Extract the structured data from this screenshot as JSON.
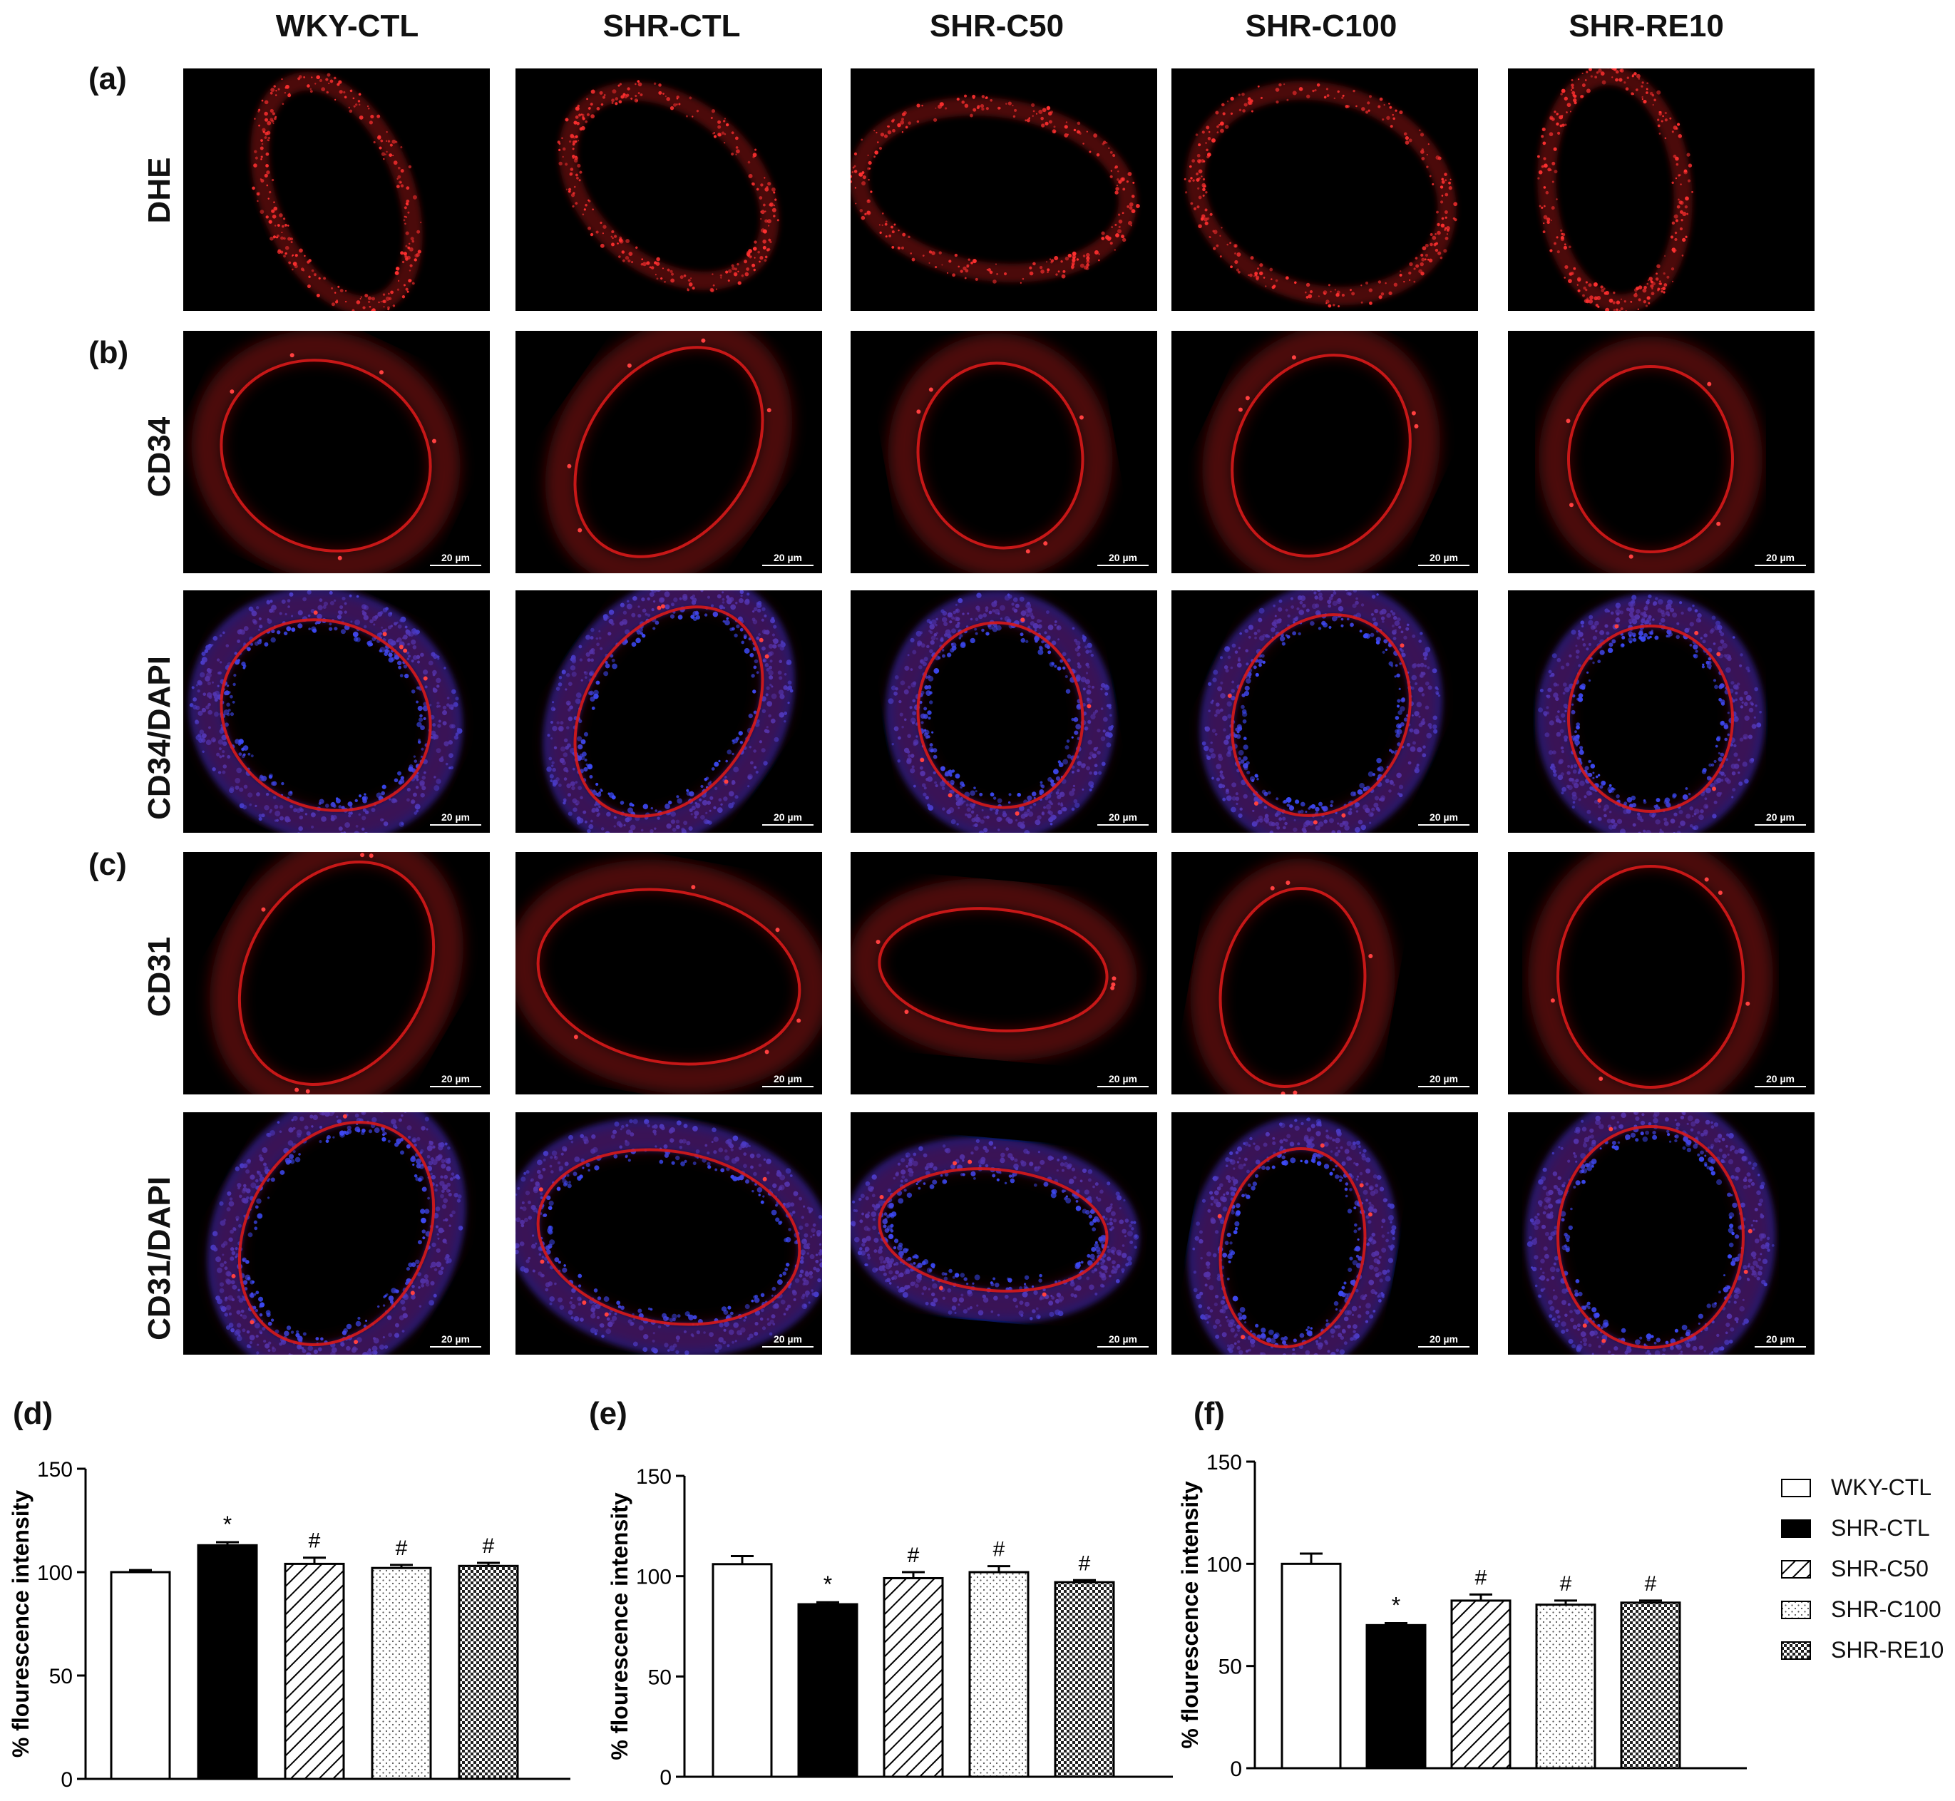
{
  "groups": [
    "WKY-CTL",
    "SHR-CTL",
    "SHR-C50",
    "SHR-C100",
    "SHR-RE10"
  ],
  "panel_letters": [
    "(a)",
    "(b)",
    "(c)",
    "(d)",
    "(e)",
    "(f)"
  ],
  "row_labels": [
    "DHE",
    "CD34",
    "CD34/DAPI",
    "CD31",
    "CD31/DAPI"
  ],
  "scale_bar": "20 µm",
  "colors": {
    "red_stain": "#d81a1a",
    "blue_stain": "#2233ee",
    "background": "#000000"
  },
  "chart_data": [
    {
      "type": "bar",
      "panel": "(d)",
      "categories": [
        "WKY-CTL",
        "SHR-CTL",
        "SHR-C50",
        "SHR-C100",
        "SHR-RE10"
      ],
      "values": [
        100,
        113,
        104,
        102,
        103
      ],
      "errors": [
        1,
        1.5,
        3,
        1.5,
        1.5
      ],
      "annotations": [
        "",
        "*",
        "#",
        "#",
        "#"
      ],
      "ylabel": "% flourescence intensity",
      "ylim": [
        0,
        150
      ],
      "yticks": [
        0,
        50,
        100,
        150
      ]
    },
    {
      "type": "bar",
      "panel": "(e)",
      "categories": [
        "WKY-CTL",
        "SHR-CTL",
        "SHR-C50",
        "SHR-C100",
        "SHR-RE10"
      ],
      "values": [
        106,
        86,
        99,
        102,
        97
      ],
      "errors": [
        4,
        1,
        3,
        3,
        1
      ],
      "annotations": [
        "",
        "*",
        "#",
        "#",
        "#"
      ],
      "ylabel": "% flourescence intensity",
      "ylim": [
        0,
        150
      ],
      "yticks": [
        0,
        50,
        100,
        150
      ]
    },
    {
      "type": "bar",
      "panel": "(f)",
      "categories": [
        "WKY-CTL",
        "SHR-CTL",
        "SHR-C50",
        "SHR-C100",
        "SHR-RE10"
      ],
      "values": [
        100,
        70,
        82,
        80,
        81
      ],
      "errors": [
        5,
        1,
        3,
        2,
        1
      ],
      "annotations": [
        "",
        "*",
        "#",
        "#",
        "#"
      ],
      "ylabel": "% flourescence intensity",
      "ylim": [
        0,
        150
      ],
      "yticks": [
        0,
        50,
        100,
        150
      ]
    }
  ],
  "legend": [
    "WKY-CTL",
    "SHR-CTL",
    "SHR-C50",
    "SHR-C100",
    "SHR-RE10"
  ]
}
